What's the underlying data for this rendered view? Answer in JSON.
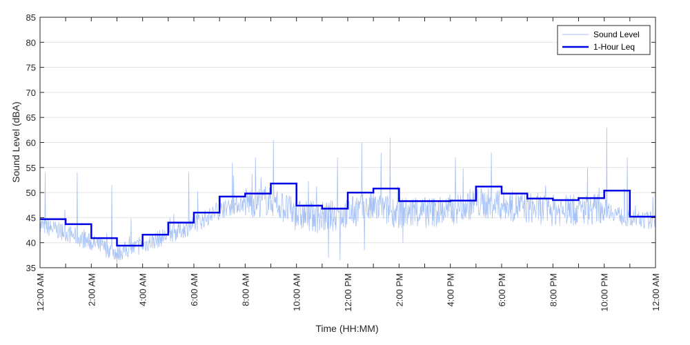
{
  "chart_data": {
    "type": "line",
    "xlabel": "Time (HH:MM)",
    "ylabel": "Sound Level (dBA)",
    "ylim": [
      35,
      85
    ],
    "xlim_hours": [
      0,
      24
    ],
    "yticks": [
      35,
      40,
      45,
      50,
      55,
      60,
      65,
      70,
      75,
      80,
      85
    ],
    "xticks": [
      {
        "hour": 0,
        "label": "12:00 AM"
      },
      {
        "hour": 2,
        "label": "2:00 AM"
      },
      {
        "hour": 4,
        "label": "4:00 AM"
      },
      {
        "hour": 6,
        "label": "6:00 AM"
      },
      {
        "hour": 8,
        "label": "8:00 AM"
      },
      {
        "hour": 10,
        "label": "10:00 AM"
      },
      {
        "hour": 12,
        "label": "12:00 PM"
      },
      {
        "hour": 14,
        "label": "2:00 PM"
      },
      {
        "hour": 16,
        "label": "4:00 PM"
      },
      {
        "hour": 18,
        "label": "6:00 PM"
      },
      {
        "hour": 20,
        "label": "8:00 PM"
      },
      {
        "hour": 22,
        "label": "10:00 PM"
      },
      {
        "hour": 24,
        "label": "12:00 AM"
      }
    ],
    "grid": "horizontal",
    "legend_position": "top-right",
    "series": [
      {
        "name": "Sound Level",
        "color": "#a6c1f5",
        "style": "thin-noisy-line",
        "hourly_baseline": [
          43.5,
          42.0,
          40.0,
          38.0,
          39.5,
          41.5,
          43.5,
          46.5,
          48.0,
          48.5,
          45.5,
          45.0,
          46.0,
          47.0,
          46.0,
          46.0,
          46.5,
          48.0,
          47.5,
          47.0,
          46.5,
          46.5,
          47.0,
          44.5
        ],
        "notable_peaks": [
          {
            "hour": 0.2,
            "value": 54
          },
          {
            "hour": 1.45,
            "value": 54
          },
          {
            "hour": 2.8,
            "value": 51.5
          },
          {
            "hour": 5.8,
            "value": 54
          },
          {
            "hour": 7.5,
            "value": 56
          },
          {
            "hour": 8.4,
            "value": 57
          },
          {
            "hour": 9.1,
            "value": 60.5
          },
          {
            "hour": 11.6,
            "value": 57
          },
          {
            "hour": 12.55,
            "value": 60
          },
          {
            "hour": 13.3,
            "value": 58
          },
          {
            "hour": 13.65,
            "value": 61
          },
          {
            "hour": 16.2,
            "value": 57
          },
          {
            "hour": 17.6,
            "value": 58
          },
          {
            "hour": 21.35,
            "value": 55
          },
          {
            "hour": 22.1,
            "value": 63
          },
          {
            "hour": 22.9,
            "value": 57
          }
        ],
        "notable_dips": [
          {
            "hour": 3.0,
            "value": 36
          },
          {
            "hour": 11.25,
            "value": 37
          },
          {
            "hour": 11.7,
            "value": 36.5
          },
          {
            "hour": 12.65,
            "value": 38.5
          },
          {
            "hour": 14.15,
            "value": 40
          }
        ]
      },
      {
        "name": "1-Hour Leq",
        "color": "#0000e6",
        "style": "step",
        "hours": [
          0,
          1,
          2,
          3,
          4,
          5,
          6,
          7,
          8,
          9,
          10,
          11,
          12,
          13,
          14,
          15,
          16,
          17,
          18,
          19,
          20,
          21,
          22,
          23
        ],
        "values": [
          44.7,
          43.7,
          40.9,
          39.4,
          41.6,
          44.0,
          46.0,
          49.2,
          49.8,
          51.8,
          47.4,
          46.8,
          50.0,
          50.8,
          48.3,
          48.3,
          48.4,
          51.2,
          49.8,
          48.8,
          48.5,
          48.9,
          50.4,
          45.2
        ]
      }
    ]
  }
}
